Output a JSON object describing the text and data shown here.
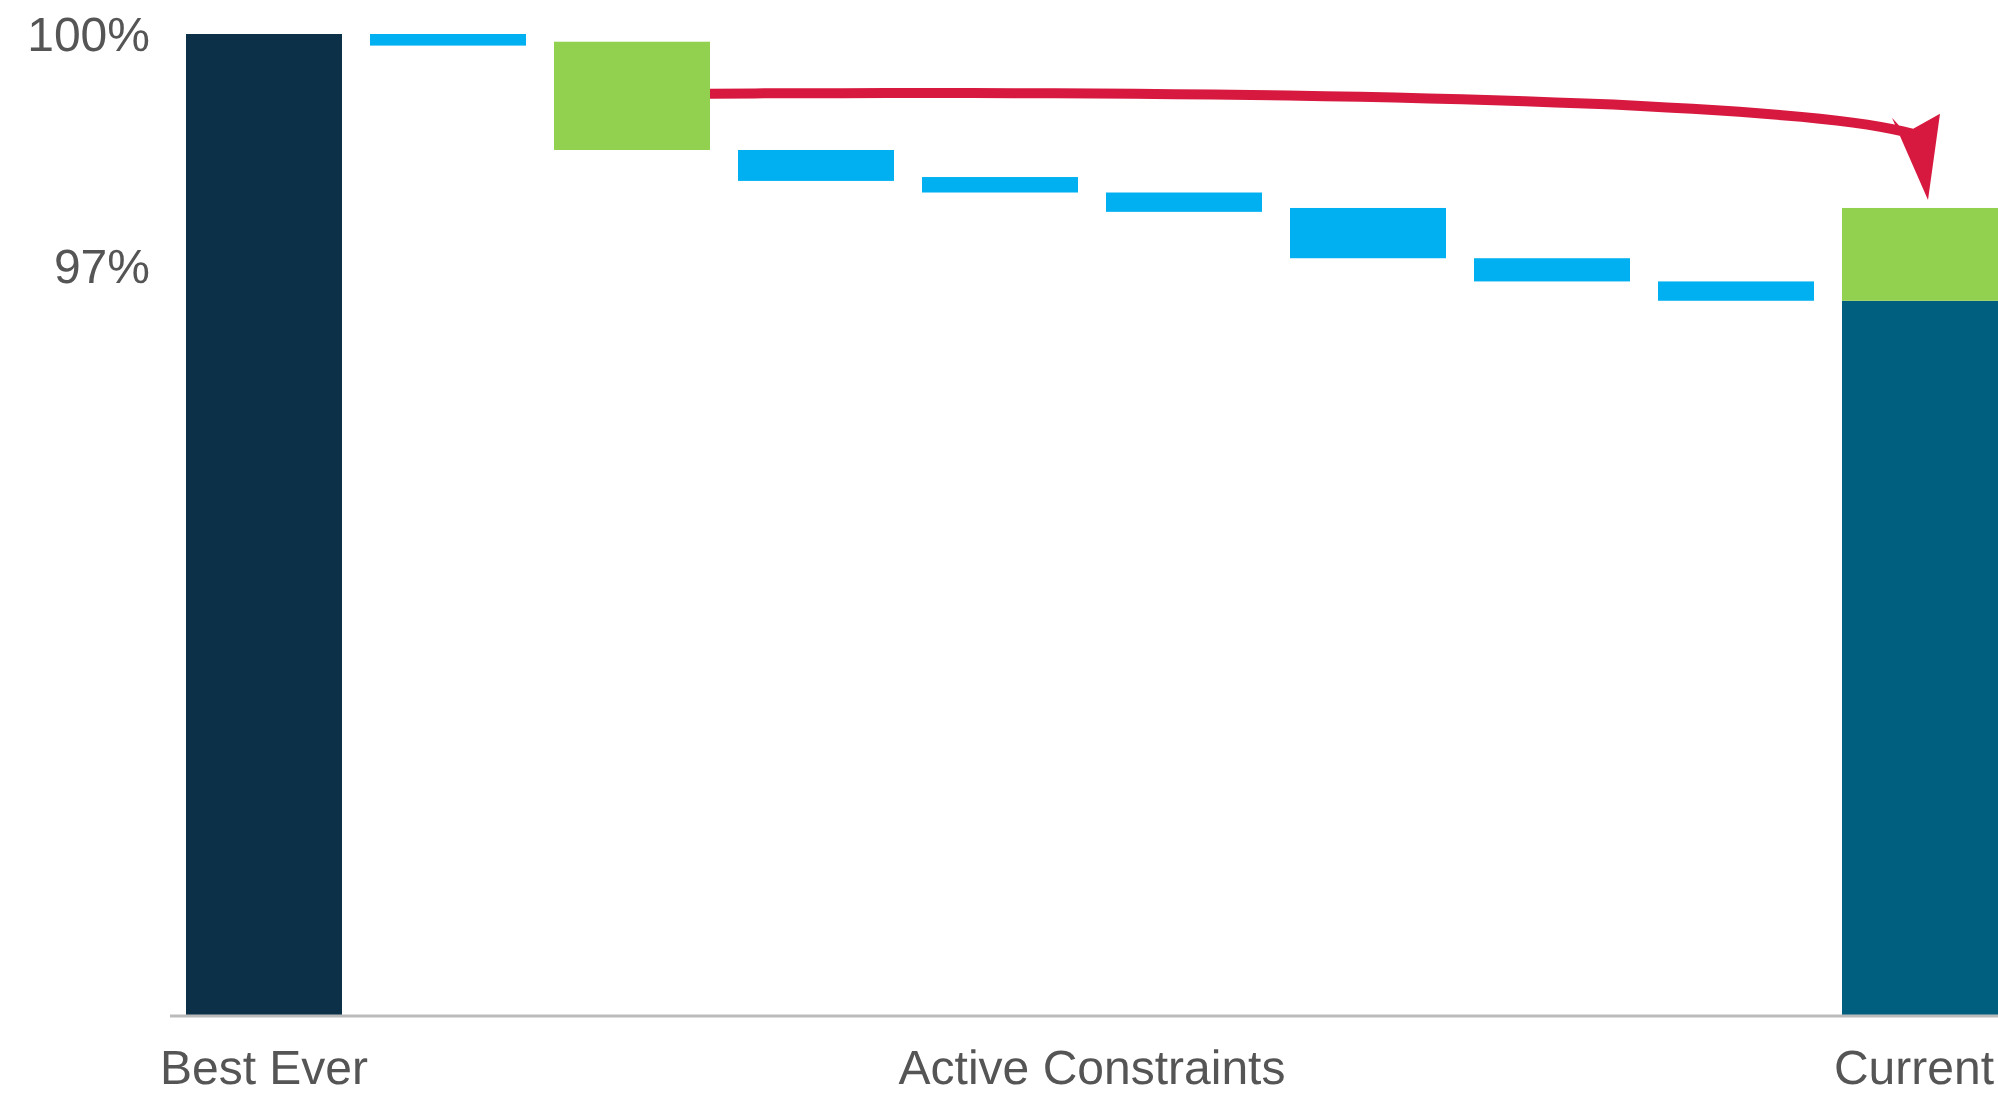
{
  "chart_data": {
    "type": "bar",
    "categories": [
      "Best Ever",
      null,
      null,
      null,
      null,
      null,
      null,
      null,
      null,
      "Current"
    ],
    "xlabel": "Active Constraints",
    "ylim": [
      87.3,
      100
    ],
    "yticks": [
      {
        "value": 100,
        "label": "100%"
      },
      {
        "value": 97,
        "label": "97%"
      }
    ],
    "grid": false,
    "series": [
      {
        "values": [
          100,
          0.15,
          null,
          0.4,
          0.2,
          0.25,
          0.65,
          0.3,
          0.25,
          96.55
        ],
        "base": [
          null,
          99.85,
          null,
          98.1,
          97.95,
          97.7,
          97.1,
          96.8,
          96.55,
          null
        ],
        "colors": [
          "#0b3048",
          "#00b0f0",
          null,
          "#00b0f0",
          "#00b0f0",
          "#00b0f0",
          "#00b0f0",
          "#00b0f0",
          "#00b0f0",
          "#005f7f"
        ]
      },
      {
        "values": [
          null,
          null,
          1.4,
          null,
          null,
          null,
          null,
          null,
          null,
          1.2
        ],
        "base": [
          null,
          null,
          98.5,
          null,
          null,
          null,
          null,
          null,
          null,
          96.55
        ],
        "color": "#92d050"
      }
    ]
  }
}
